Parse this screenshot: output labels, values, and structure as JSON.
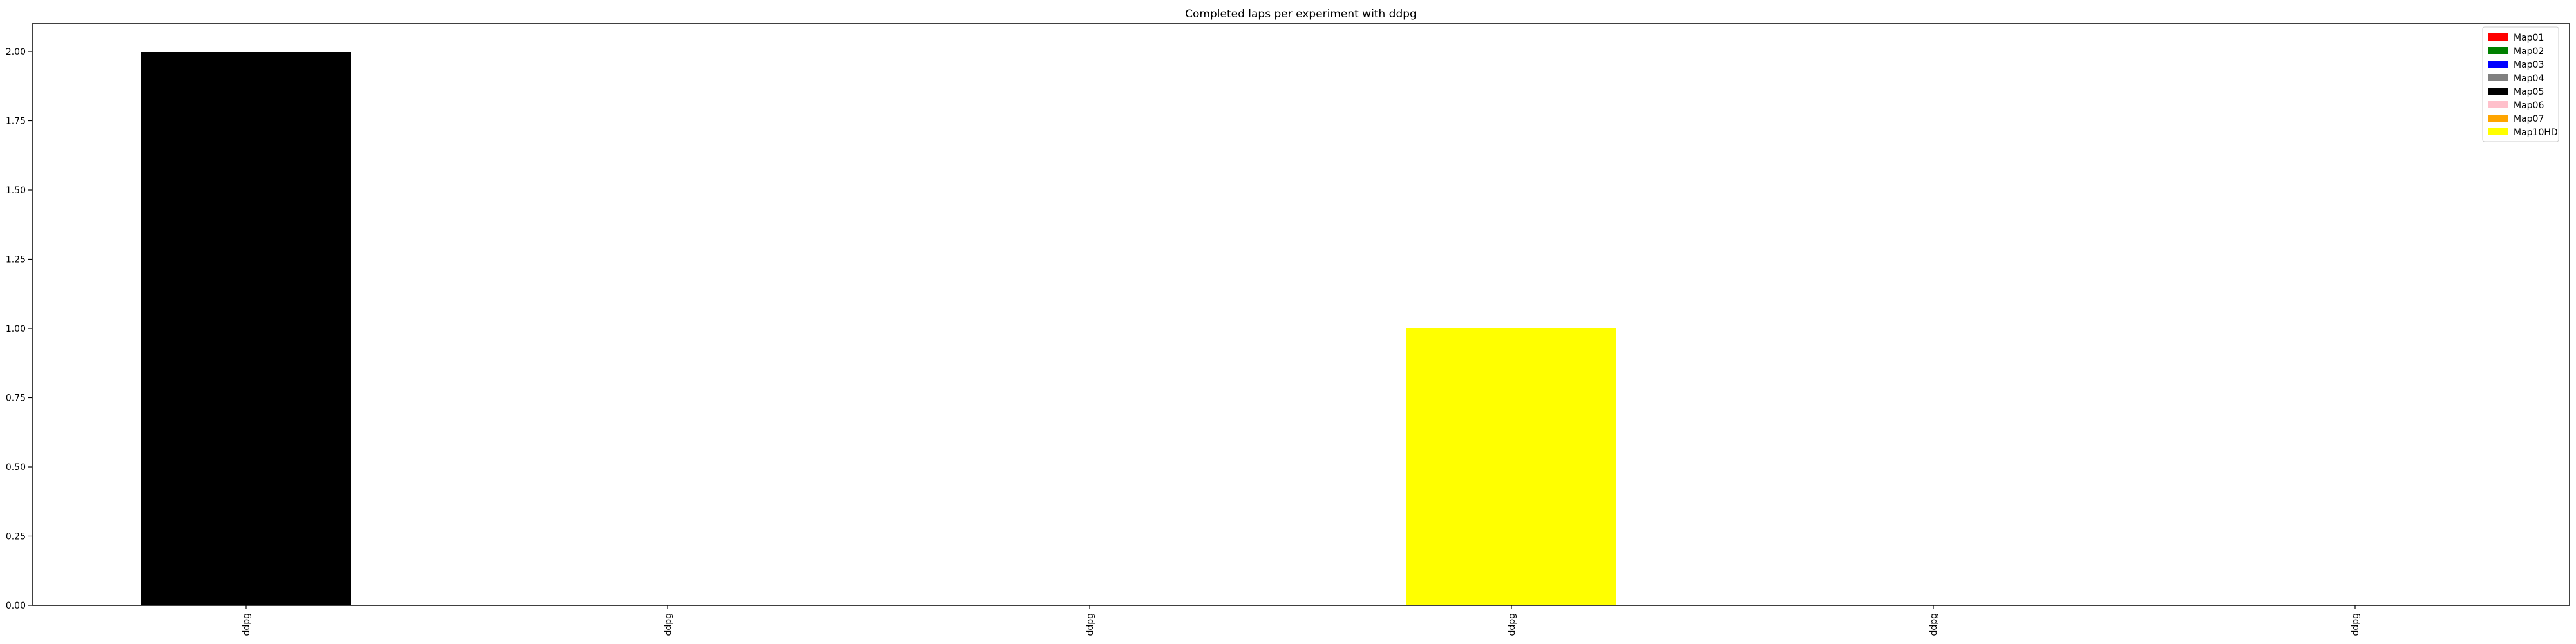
{
  "chart_data": {
    "type": "bar",
    "title": "Completed laps per experiment with ddpg",
    "xlabel": "",
    "ylabel": "",
    "categories": [
      "ddpg",
      "ddpg",
      "ddpg",
      "ddpg",
      "ddpg",
      "ddpg"
    ],
    "yticks": [
      "0.00",
      "0.25",
      "0.50",
      "0.75",
      "1.00",
      "1.25",
      "1.50",
      "1.75",
      "2.00"
    ],
    "ylim": [
      0,
      2.1
    ],
    "grid": false,
    "legend_position": "top-right",
    "series": [
      {
        "name": "Map01",
        "color": "#ff0000",
        "values": [
          0,
          0,
          0,
          0,
          0,
          0
        ]
      },
      {
        "name": "Map02",
        "color": "#008000",
        "values": [
          0,
          0,
          0,
          0,
          0,
          0
        ]
      },
      {
        "name": "Map03",
        "color": "#0000ff",
        "values": [
          0,
          0,
          0,
          0,
          0,
          0
        ]
      },
      {
        "name": "Map04",
        "color": "#808080",
        "values": [
          0,
          0,
          0,
          0,
          0,
          0
        ]
      },
      {
        "name": "Map05",
        "color": "#000000",
        "values": [
          2,
          0,
          0,
          0,
          0,
          0
        ]
      },
      {
        "name": "Map06",
        "color": "#ffc0cb",
        "values": [
          0,
          0,
          0,
          0,
          0,
          0
        ]
      },
      {
        "name": "Map07",
        "color": "#ffa500",
        "values": [
          0,
          0,
          0,
          0,
          0,
          0
        ]
      },
      {
        "name": "Map10HD",
        "color": "#ffff00",
        "values": [
          0,
          0,
          0,
          1,
          0,
          0
        ]
      }
    ]
  }
}
